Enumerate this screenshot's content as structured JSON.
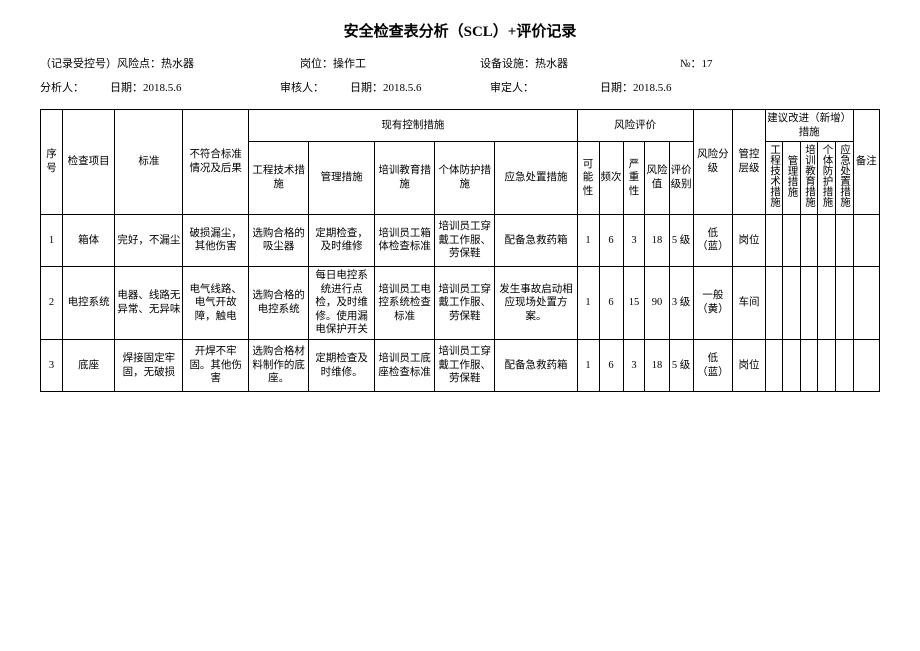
{
  "title": "安全检查表分析（SCL）+评价记录",
  "meta1": {
    "a": "（记录受控号）风险点：热水器",
    "b": "岗位：操作工",
    "c": "设备设施：热水器",
    "d": "№：17"
  },
  "meta2": {
    "a": "分析人：",
    "b": "日期：2018.5.6",
    "c": "审核人：",
    "d": "日期：2018.5.6",
    "e": "审定人：",
    "f": "日期：2018.5.6"
  },
  "headers": {
    "seq": "序号",
    "item": "检查项目",
    "std": "标准",
    "noncon": "不符合标准情况及后果",
    "ctrl_group": "现有控制措施",
    "ctrl_eng": "工程技术措施",
    "ctrl_mgmt": "管理措施",
    "ctrl_train": "培训教育措施",
    "ctrl_ppe": "个体防护措施",
    "ctrl_emerg": "应急处置措施",
    "risk_group": "风险评价",
    "r_poss": "可能性",
    "r_freq": "频次",
    "r_sev": "严重性",
    "r_val": "风险值",
    "r_grade": "评价级别",
    "r_rank": "风险分级",
    "r_level": "管控层级",
    "sug_group": "建议改进（新增）措施",
    "s_eng": "工程技术措施",
    "s_mgmt": "管理措施",
    "s_train": "培训教育措施",
    "s_ppe": "个体防护措施",
    "s_emerg": "应急处置措施",
    "remark": "备注"
  },
  "rows": [
    {
      "seq": "1",
      "item": "箱体",
      "std": "完好，不漏尘",
      "noncon": "破损漏尘，其他伤害",
      "eng": "选购合格的吸尘器",
      "mgmt": "定期检查，及时维修",
      "train": "培训员工箱体检查标准",
      "ppe": "培训员工穿戴工作服、劳保鞋",
      "emerg": "配备急救药箱",
      "poss": "1",
      "freq": "6",
      "sev": "3",
      "val": "18",
      "grade": "5 级",
      "rank": "低（蓝）",
      "level": "岗位",
      "s1": "",
      "s2": "",
      "s3": "",
      "s4": "",
      "s5": "",
      "remark": ""
    },
    {
      "seq": "2",
      "item": "电控系统",
      "std": "电器、线路无异常、无异味",
      "noncon": "电气线路、电气开故障，触电",
      "eng": "选购合格的电控系统",
      "mgmt": "每日电控系统进行点检，及时维修。使用漏电保护开关",
      "train": "培训员工电控系统检查标准",
      "ppe": "培训员工穿戴工作服、劳保鞋",
      "emerg": "发生事故启动相应现场处置方案。",
      "poss": "1",
      "freq": "6",
      "sev": "15",
      "val": "90",
      "grade": "3 级",
      "rank": "一般（黄）",
      "level": "车间",
      "s1": "",
      "s2": "",
      "s3": "",
      "s4": "",
      "s5": "",
      "remark": ""
    },
    {
      "seq": "3",
      "item": "底座",
      "std": "焊接固定牢固，无破损",
      "noncon": "开焊不牢固。其他伤害",
      "eng": "选购合格材料制作的底座。",
      "mgmt": "定期检查及时维修。",
      "train": "培训员工底座检查标准",
      "ppe": "培训员工穿戴工作服、劳保鞋",
      "emerg": "配备急救药箱",
      "poss": "1",
      "freq": "6",
      "sev": "3",
      "val": "18",
      "grade": "5 级",
      "rank": "低（蓝）",
      "level": "岗位",
      "s1": "",
      "s2": "",
      "s3": "",
      "s4": "",
      "s5": "",
      "remark": ""
    }
  ]
}
